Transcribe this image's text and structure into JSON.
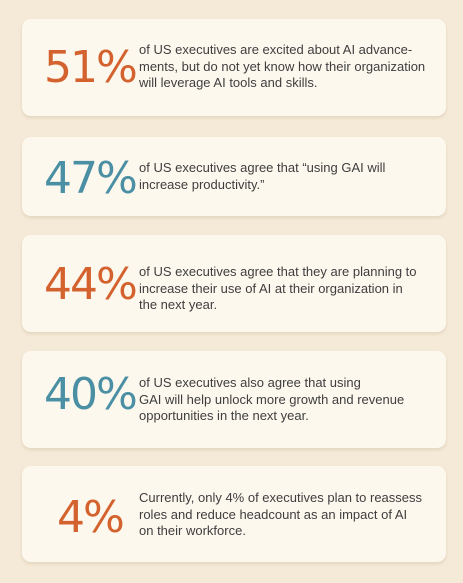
{
  "colors": {
    "background": "#f5ead8",
    "card": "#fdf8ee",
    "orange": "#d4622e",
    "teal": "#4a8fa3",
    "text": "#3e3e3e"
  },
  "stats": [
    {
      "value": "51%",
      "color": "orange",
      "text": "of US executives are excited about AI advance-\nments, but do not yet know how their organization\nwill leverage AI tools and skills."
    },
    {
      "value": "47%",
      "color": "teal",
      "text": "of US executives agree that “using GAI will\nincrease productivity.”"
    },
    {
      "value": "44%",
      "color": "orange",
      "text": "of US executives agree that they are planning to\nincrease their use of AI at their organization in\nthe next year."
    },
    {
      "value": "40%",
      "color": "teal",
      "text": "of US executives also agree that using\nGAI will help unlock more growth and revenue\nopportunities in the next year."
    },
    {
      "value": "4%",
      "color": "orange",
      "text": "Currently, only 4% of executives plan to reassess\nroles and reduce headcount as an impact of AI\non their workforce."
    }
  ]
}
